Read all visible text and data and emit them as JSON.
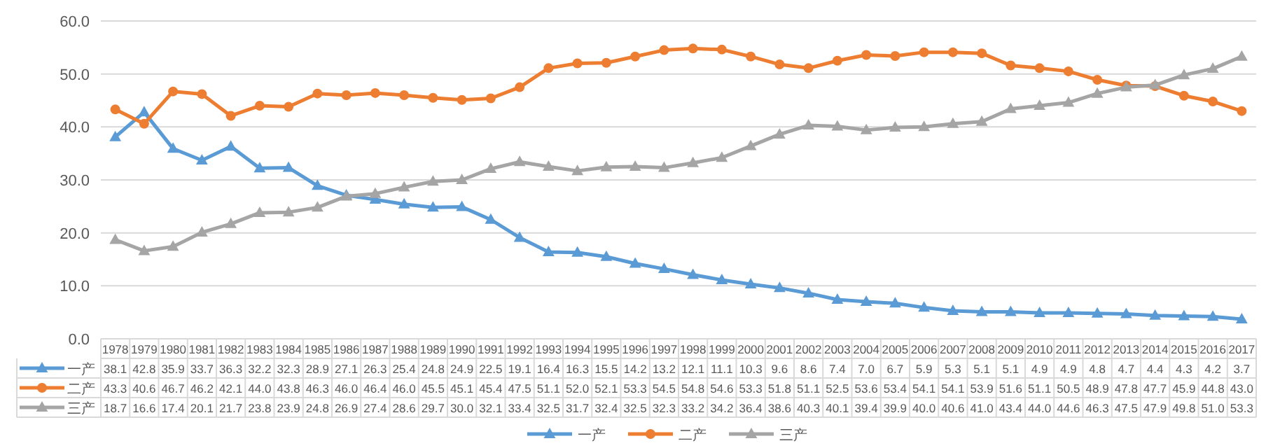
{
  "chart_data": {
    "type": "line",
    "categories": [
      "1978",
      "1979",
      "1980",
      "1981",
      "1982",
      "1983",
      "1984",
      "1985",
      "1986",
      "1987",
      "1988",
      "1989",
      "1990",
      "1991",
      "1992",
      "1993",
      "1994",
      "1995",
      "1996",
      "1997",
      "1998",
      "1999",
      "2000",
      "2001",
      "2002",
      "2003",
      "2004",
      "2005",
      "2006",
      "2007",
      "2008",
      "2009",
      "2010",
      "2011",
      "2012",
      "2013",
      "2014",
      "2015",
      "2016",
      "2017"
    ],
    "series": [
      {
        "name": "一产",
        "color": "#5b9bd5",
        "marker": "triangle",
        "values": [
          38.1,
          42.8,
          35.9,
          33.7,
          36.3,
          32.2,
          32.3,
          28.9,
          27.1,
          26.3,
          25.4,
          24.8,
          24.9,
          22.5,
          19.1,
          16.4,
          16.3,
          15.5,
          14.2,
          13.2,
          12.1,
          11.1,
          10.3,
          9.6,
          8.6,
          7.4,
          7.0,
          6.7,
          5.9,
          5.3,
          5.1,
          5.1,
          4.9,
          4.9,
          4.8,
          4.7,
          4.4,
          4.3,
          4.2,
          3.7
        ],
        "value_labels": [
          "38.1",
          "42.8",
          "35.9",
          "33.7",
          "36.3",
          "32.2",
          "32.3",
          "28.9",
          "27.1",
          "26.3",
          "25.4",
          "24.8",
          "24.9",
          "22.5",
          "19.1",
          "16.4",
          "16.3",
          "15.5",
          "14.2",
          "13.2",
          "12.1",
          "11.1",
          "10.3",
          "9.6",
          "8.6",
          "7.4",
          "7.0",
          "6.7",
          "5.9",
          "5.3",
          "5.1",
          "5.1",
          "4.9",
          "4.9",
          "4.8",
          "4.7",
          "4.4",
          "4.3",
          "4.2",
          "3.7"
        ]
      },
      {
        "name": "二产",
        "color": "#ed7d31",
        "marker": "circle",
        "values": [
          43.3,
          40.6,
          46.7,
          46.2,
          42.1,
          44.0,
          43.8,
          46.3,
          46.0,
          46.4,
          46.0,
          45.5,
          45.1,
          45.4,
          47.5,
          51.1,
          52.0,
          52.1,
          53.3,
          54.5,
          54.8,
          54.6,
          53.3,
          51.8,
          51.1,
          52.5,
          53.6,
          53.4,
          54.1,
          54.1,
          53.9,
          51.6,
          51.1,
          50.5,
          48.9,
          47.8,
          47.7,
          45.9,
          44.8,
          43.0
        ],
        "value_labels": [
          "43.3",
          "40.6",
          "46.7",
          "46.2",
          "42.1",
          "44.0",
          "43.8",
          "46.3",
          "46.0",
          "46.4",
          "46.0",
          "45.5",
          "45.1",
          "45.4",
          "47.5",
          "51.1",
          "52.0",
          "52.1",
          "53.3",
          "54.5",
          "54.8",
          "54.6",
          "53.3",
          "51.8",
          "51.1",
          "52.5",
          "53.6",
          "53.4",
          "54.1",
          "54.1",
          "53.9",
          "51.6",
          "51.1",
          "50.5",
          "48.9",
          "47.8",
          "47.7",
          "45.9",
          "44.8",
          "43.0"
        ]
      },
      {
        "name": "三产",
        "color": "#a5a5a5",
        "marker": "triangle",
        "values": [
          18.7,
          16.6,
          17.4,
          20.1,
          21.7,
          23.8,
          23.9,
          24.8,
          26.9,
          27.4,
          28.6,
          29.7,
          30.0,
          32.1,
          33.4,
          32.5,
          31.7,
          32.4,
          32.5,
          32.3,
          33.2,
          34.2,
          36.4,
          38.6,
          40.3,
          40.1,
          39.4,
          39.9,
          40.0,
          40.6,
          41.0,
          43.4,
          44.0,
          44.6,
          46.3,
          47.5,
          47.9,
          49.8,
          51.0,
          53.3
        ],
        "value_labels": [
          "18.7",
          "16.6",
          "17.4",
          "20.1",
          "21.7",
          "23.8",
          "23.9",
          "24.8",
          "26.9",
          "27.4",
          "28.6",
          "29.7",
          "30.0",
          "32.1",
          "33.4",
          "32.5",
          "31.7",
          "32.4",
          "32.5",
          "32.3",
          "33.2",
          "34.2",
          "36.4",
          "38.6",
          "40.3",
          "40.1",
          "39.4",
          "39.9",
          "40.0",
          "40.6",
          "41.0",
          "43.4",
          "44.0",
          "44.6",
          "46.3",
          "47.5",
          "47.9",
          "49.8",
          "51.0",
          "53.3"
        ]
      }
    ],
    "ylim": [
      0,
      60
    ],
    "yticks": [
      {
        "value": 0,
        "label": "0.0"
      },
      {
        "value": 10,
        "label": "10.0"
      },
      {
        "value": 20,
        "label": "20.0"
      },
      {
        "value": 30,
        "label": "30.0"
      },
      {
        "value": 40,
        "label": "40.0"
      },
      {
        "value": 50,
        "label": "50.0"
      },
      {
        "value": 60,
        "label": "60.0"
      }
    ],
    "grid": "y",
    "legend": "bottom",
    "line_style": "solid"
  }
}
